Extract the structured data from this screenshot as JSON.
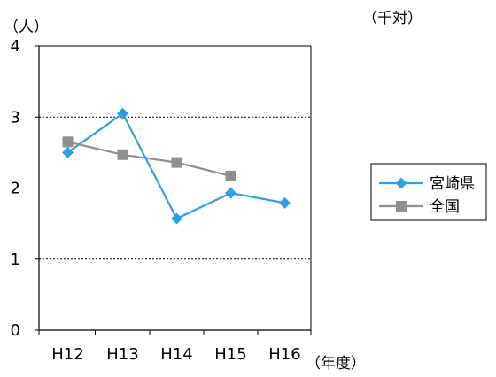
{
  "chart_data": {
    "type": "line",
    "ylabel": "（人）",
    "xlabel": "（年度）",
    "annotation": "（千対）",
    "categories": [
      "H12",
      "H13",
      "H14",
      "H15",
      "H16"
    ],
    "ylim": [
      0,
      4
    ],
    "yticks": [
      0,
      1,
      2,
      3,
      4
    ],
    "grid": true,
    "legend_position": "right",
    "series": [
      {
        "name": "宮崎県",
        "marker": "diamond",
        "color": "#2e9fe6",
        "values": [
          2.5,
          3.05,
          1.57,
          1.93,
          1.79
        ]
      },
      {
        "name": "全国",
        "marker": "square",
        "color": "#8f8f8f",
        "values": [
          2.65,
          2.47,
          2.36,
          2.17,
          null
        ]
      }
    ]
  }
}
